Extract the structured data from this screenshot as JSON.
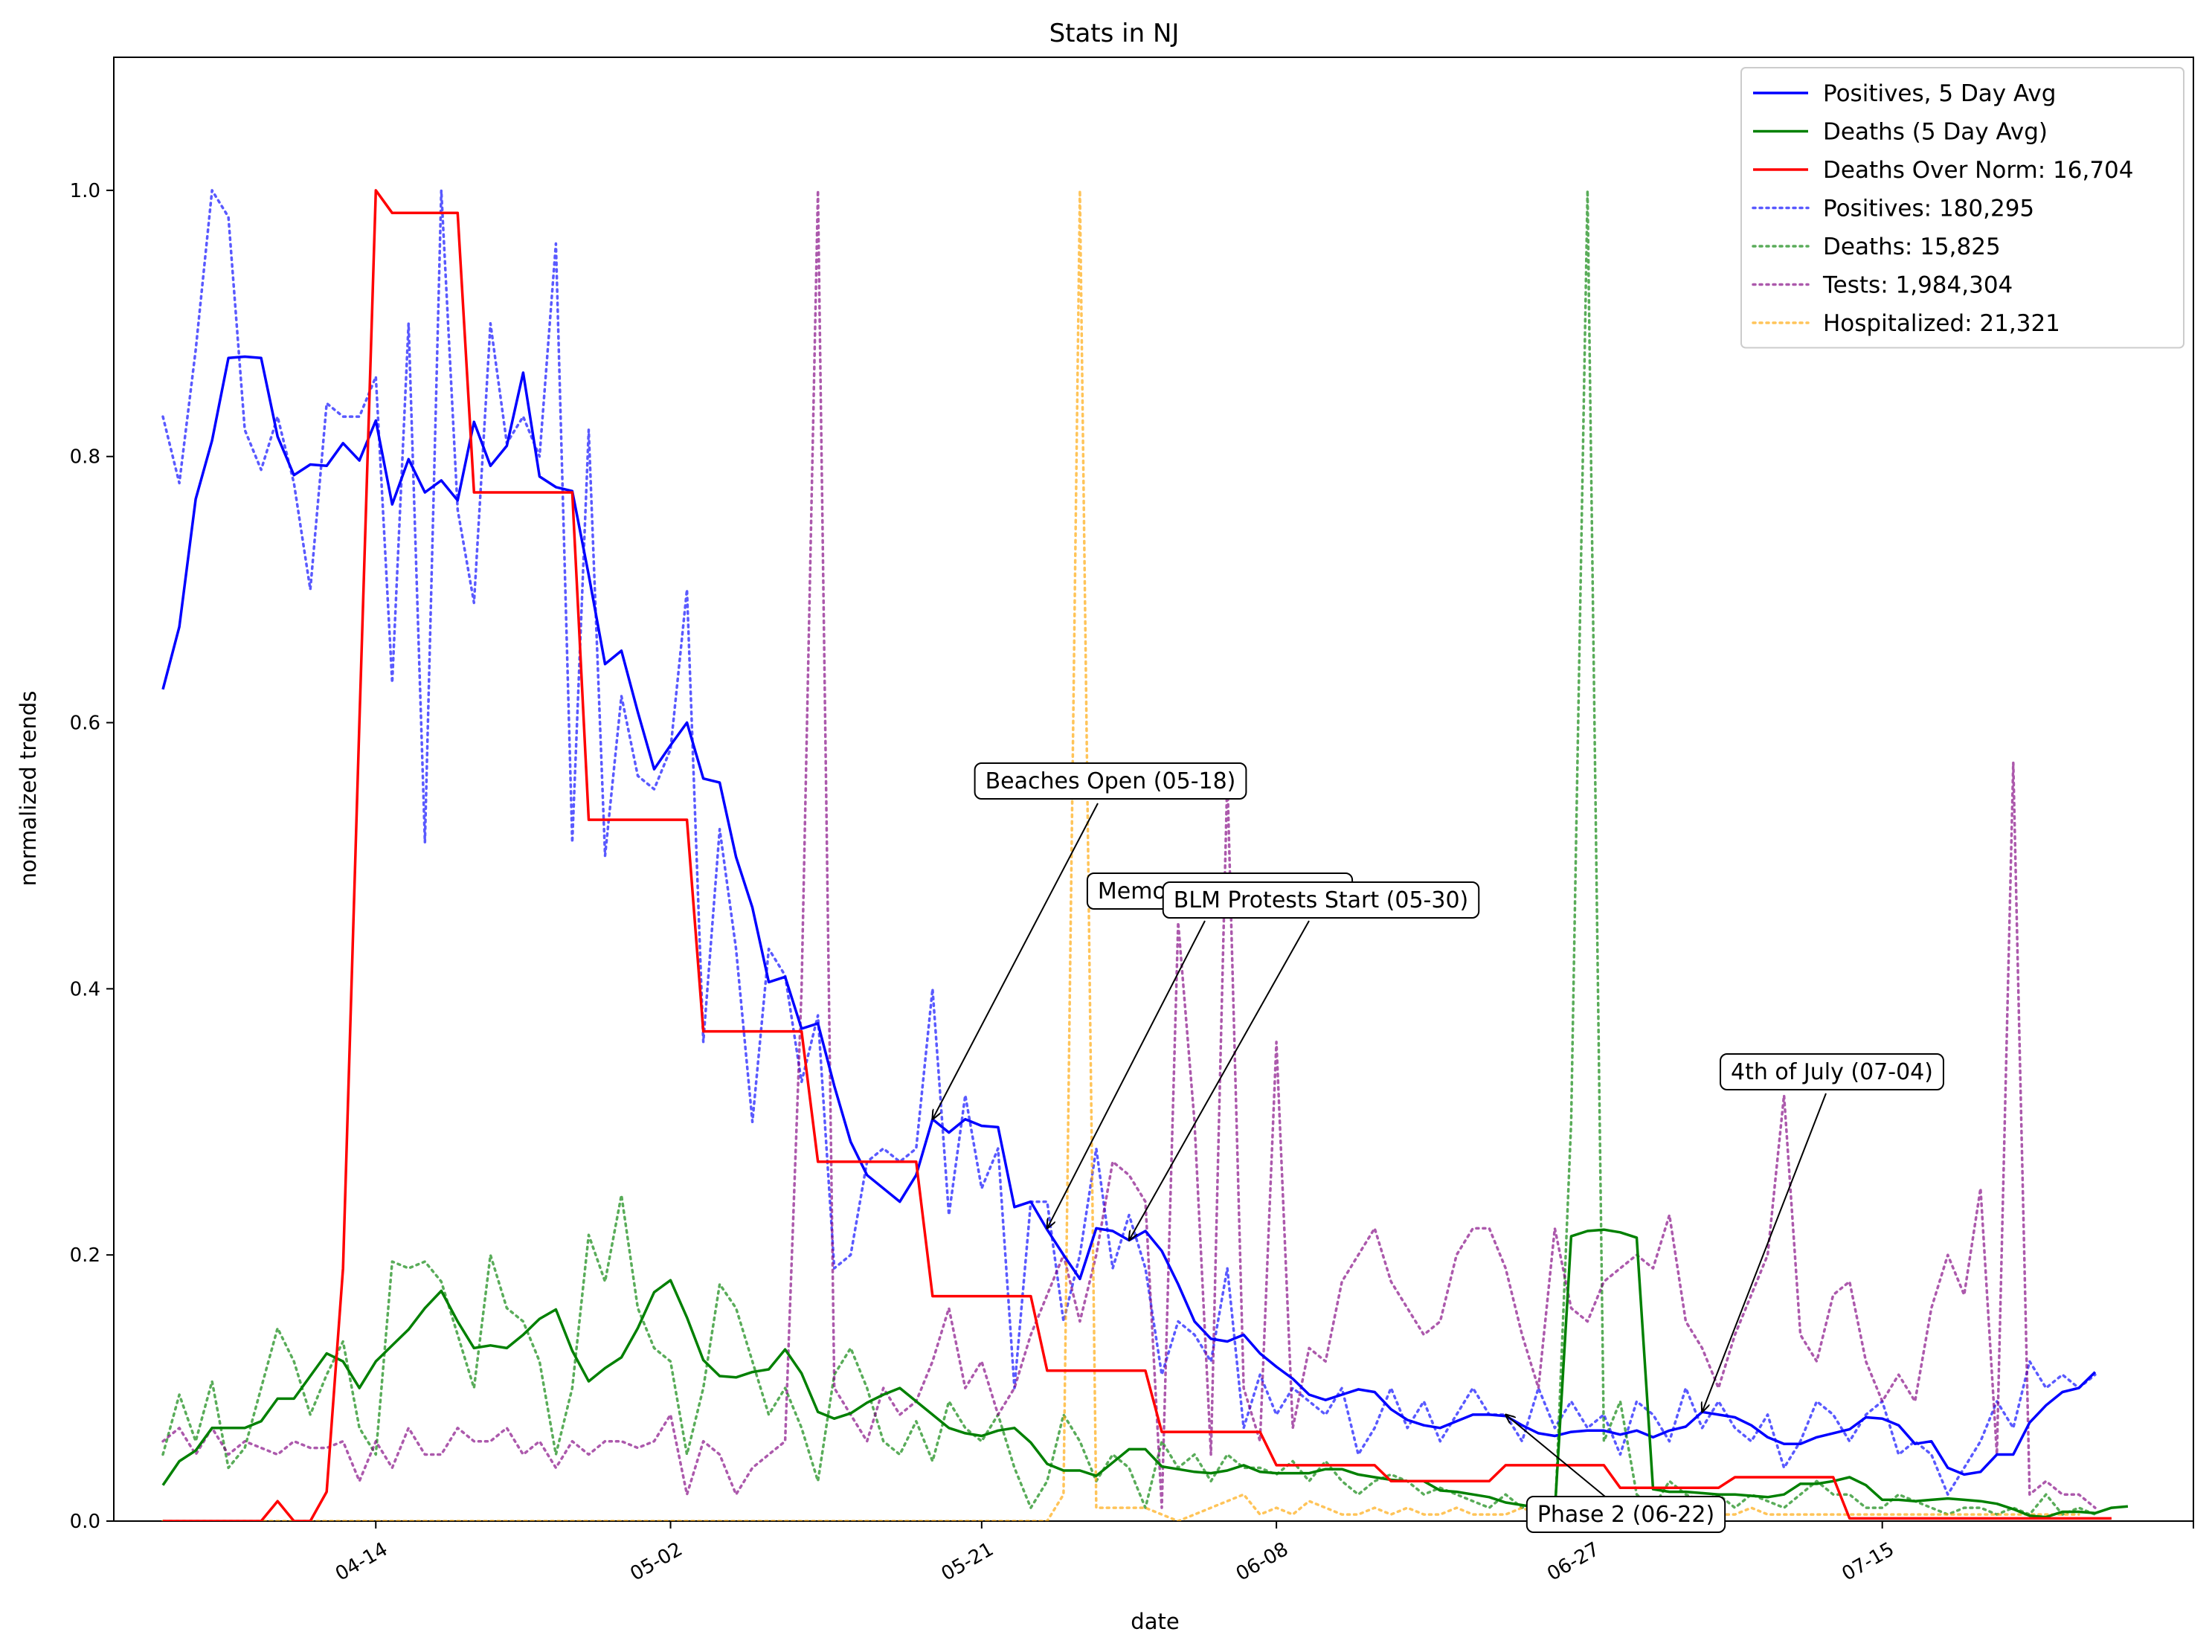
{
  "chart_data": {
    "type": "line",
    "title": "Stats in NJ",
    "xlabel": "date",
    "ylabel": "normalized trends",
    "ylim": [
      0,
      1.1
    ],
    "xlim": [
      "2020-03-29",
      "2020-08-03"
    ],
    "grid": false,
    "legend_position": "top-right",
    "x_ticks": [
      "04-14",
      "05-02",
      "05-21",
      "06-08",
      "06-27",
      "07-15"
    ],
    "x_tick_dates": [
      "2020-04-14",
      "2020-05-02",
      "2020-05-21",
      "2020-06-08",
      "2020-06-27",
      "2020-07-15"
    ],
    "y_ticks": [
      "0.0",
      "0.2",
      "0.4",
      "0.6",
      "0.8",
      "1.0"
    ],
    "start_date": "2020-04-01",
    "series": [
      {
        "name": "Positives, 5 Day Avg",
        "color": "#0000ff",
        "style": "solid",
        "values": [
          0.625,
          0.672,
          0.768,
          0.812,
          0.874,
          0.875,
          0.874,
          0.815,
          0.786,
          0.794,
          0.793,
          0.81,
          0.797,
          0.827,
          0.764,
          0.798,
          0.773,
          0.782,
          0.767,
          0.826,
          0.793,
          0.808,
          0.863,
          0.785,
          0.777,
          0.774,
          0.711,
          0.644,
          0.654,
          0.608,
          0.565,
          0.583,
          0.6,
          0.558,
          0.555,
          0.499,
          0.461,
          0.405,
          0.409,
          0.37,
          0.374,
          0.327,
          0.285,
          0.26,
          0.25,
          0.24,
          0.26,
          0.302,
          0.292,
          0.302,
          0.297,
          0.296,
          0.236,
          0.24,
          0.219,
          0.2,
          0.182,
          0.22,
          0.218,
          0.211,
          0.218,
          0.203,
          0.178,
          0.15,
          0.137,
          0.135,
          0.14,
          0.126,
          0.116,
          0.107,
          0.095,
          0.091,
          0.095,
          0.099,
          0.097,
          0.084,
          0.076,
          0.072,
          0.07,
          0.075,
          0.08,
          0.08,
          0.079,
          0.072,
          0.066,
          0.064,
          0.067,
          0.068,
          0.068,
          0.065,
          0.068,
          0.063,
          0.068,
          0.071,
          0.082,
          0.08,
          0.078,
          0.072,
          0.063,
          0.058,
          0.058,
          0.063,
          0.066,
          0.069,
          0.078,
          0.077,
          0.072,
          0.058,
          0.06,
          0.04,
          0.035,
          0.037,
          0.05,
          0.05,
          0.074,
          0.087,
          0.097,
          0.1,
          0.112
        ]
      },
      {
        "name": "Deaths (5 Day Avg)",
        "color": "#008000",
        "style": "solid",
        "values": [
          0.027,
          0.045,
          0.053,
          0.07,
          0.07,
          0.07,
          0.075,
          0.092,
          0.092,
          0.109,
          0.126,
          0.12,
          0.1,
          0.12,
          0.132,
          0.144,
          0.16,
          0.173,
          0.15,
          0.13,
          0.132,
          0.13,
          0.14,
          0.152,
          0.159,
          0.128,
          0.105,
          0.115,
          0.123,
          0.145,
          0.172,
          0.181,
          0.153,
          0.121,
          0.109,
          0.108,
          0.112,
          0.114,
          0.129,
          0.111,
          0.082,
          0.077,
          0.081,
          0.089,
          0.095,
          0.1,
          0.09,
          0.08,
          0.07,
          0.066,
          0.064,
          0.068,
          0.07,
          0.059,
          0.043,
          0.038,
          0.038,
          0.034,
          0.044,
          0.054,
          0.054,
          0.041,
          0.039,
          0.037,
          0.036,
          0.038,
          0.042,
          0.037,
          0.036,
          0.036,
          0.036,
          0.039,
          0.039,
          0.035,
          0.033,
          0.031,
          0.03,
          0.03,
          0.023,
          0.022,
          0.02,
          0.018,
          0.014,
          0.012,
          0.01,
          0.007,
          0.214,
          0.218,
          0.219,
          0.217,
          0.213,
          0.024,
          0.022,
          0.022,
          0.021,
          0.02,
          0.02,
          0.019,
          0.018,
          0.02,
          0.028,
          0.028,
          0.03,
          0.033,
          0.027,
          0.016,
          0.016,
          0.015,
          0.016,
          0.017,
          0.016,
          0.015,
          0.013,
          0.009,
          0.004,
          0.003,
          0.007,
          0.007,
          0.006,
          0.01,
          0.011
        ]
      },
      {
        "name": "Deaths Over Norm: 16,704",
        "color": "#ff0000",
        "style": "solid",
        "values": [
          0,
          0,
          0,
          0,
          0,
          0,
          0,
          0.015,
          0,
          0,
          0.022,
          0.19,
          0.6,
          1.0,
          0.983,
          0.983,
          0.983,
          0.983,
          0.983,
          0.773,
          0.773,
          0.773,
          0.773,
          0.773,
          0.773,
          0.773,
          0.527,
          0.527,
          0.527,
          0.527,
          0.527,
          0.527,
          0.527,
          0.368,
          0.368,
          0.368,
          0.368,
          0.368,
          0.368,
          0.368,
          0.27,
          0.27,
          0.27,
          0.27,
          0.27,
          0.27,
          0.27,
          0.169,
          0.169,
          0.169,
          0.169,
          0.169,
          0.169,
          0.169,
          0.113,
          0.113,
          0.113,
          0.113,
          0.113,
          0.113,
          0.113,
          0.067,
          0.067,
          0.067,
          0.067,
          0.067,
          0.067,
          0.067,
          0.042,
          0.042,
          0.042,
          0.042,
          0.042,
          0.042,
          0.042,
          0.03,
          0.03,
          0.03,
          0.03,
          0.03,
          0.03,
          0.03,
          0.042,
          0.042,
          0.042,
          0.042,
          0.042,
          0.042,
          0.042,
          0.025,
          0.025,
          0.025,
          0.025,
          0.025,
          0.025,
          0.025,
          0.033,
          0.033,
          0.033,
          0.033,
          0.033,
          0.033,
          0.033,
          0.002,
          0.002,
          0.002,
          0.002,
          0.002,
          0.002,
          0.002,
          0.002,
          0.002,
          0.002,
          0.002,
          0.002,
          0.002,
          0.002,
          0.002,
          0.002,
          0.002
        ]
      },
      {
        "name": "Positives: 180,295",
        "color": "#0000ff",
        "style": "dotted",
        "values": [
          0.83,
          0.78,
          0.88,
          1.0,
          0.98,
          0.82,
          0.79,
          0.83,
          0.78,
          0.7,
          0.84,
          0.83,
          0.83,
          0.86,
          0.63,
          0.9,
          0.51,
          1.0,
          0.76,
          0.69,
          0.9,
          0.81,
          0.83,
          0.8,
          0.96,
          0.51,
          0.82,
          0.5,
          0.62,
          0.56,
          0.55,
          0.58,
          0.7,
          0.36,
          0.52,
          0.43,
          0.3,
          0.43,
          0.41,
          0.33,
          0.38,
          0.19,
          0.2,
          0.27,
          0.28,
          0.27,
          0.28,
          0.4,
          0.23,
          0.32,
          0.25,
          0.28,
          0.1,
          0.24,
          0.24,
          0.15,
          0.2,
          0.28,
          0.19,
          0.23,
          0.19,
          0.11,
          0.15,
          0.14,
          0.12,
          0.19,
          0.07,
          0.11,
          0.08,
          0.1,
          0.09,
          0.08,
          0.1,
          0.05,
          0.07,
          0.1,
          0.07,
          0.09,
          0.06,
          0.08,
          0.1,
          0.08,
          0.08,
          0.06,
          0.1,
          0.07,
          0.09,
          0.07,
          0.08,
          0.05,
          0.09,
          0.08,
          0.06,
          0.1,
          0.07,
          0.09,
          0.07,
          0.06,
          0.08,
          0.04,
          0.06,
          0.09,
          0.08,
          0.06,
          0.08,
          0.09,
          0.05,
          0.06,
          0.05,
          0.02,
          0.04,
          0.06,
          0.09,
          0.07,
          0.12,
          0.1,
          0.11,
          0.1,
          0.11
        ]
      },
      {
        "name": "Deaths: 15,825",
        "color": "#008000",
        "style": "dotted",
        "values": [
          0.05,
          0.095,
          0.06,
          0.105,
          0.04,
          0.055,
          0.1,
          0.145,
          0.12,
          0.08,
          0.11,
          0.135,
          0.07,
          0.05,
          0.195,
          0.19,
          0.195,
          0.18,
          0.14,
          0.1,
          0.2,
          0.16,
          0.15,
          0.12,
          0.05,
          0.1,
          0.215,
          0.18,
          0.245,
          0.16,
          0.13,
          0.12,
          0.05,
          0.1,
          0.178,
          0.16,
          0.12,
          0.08,
          0.1,
          0.07,
          0.03,
          0.11,
          0.13,
          0.1,
          0.06,
          0.05,
          0.075,
          0.045,
          0.09,
          0.07,
          0.06,
          0.08,
          0.04,
          0.01,
          0.03,
          0.08,
          0.06,
          0.03,
          0.05,
          0.04,
          0.01,
          0.06,
          0.04,
          0.05,
          0.03,
          0.05,
          0.04,
          0.04,
          0.035,
          0.045,
          0.03,
          0.045,
          0.03,
          0.02,
          0.03,
          0.035,
          0.03,
          0.02,
          0.025,
          0.02,
          0.015,
          0.01,
          0.02,
          0.01,
          0.015,
          0.0,
          0.3,
          1.0,
          0.06,
          0.09,
          0.02,
          0.01,
          0.03,
          0.02,
          0.015,
          0.02,
          0.01,
          0.02,
          0.015,
          0.01,
          0.02,
          0.03,
          0.02,
          0.02,
          0.01,
          0.01,
          0.02,
          0.015,
          0.01,
          0.005,
          0.01,
          0.01,
          0.005,
          0.01,
          0.005,
          0.02,
          0.005,
          0.01,
          0.005
        ]
      },
      {
        "name": "Tests: 1,984,304",
        "color": "#800080",
        "style": "dotted",
        "values": [
          0.06,
          0.07,
          0.05,
          0.07,
          0.05,
          0.06,
          0.055,
          0.05,
          0.06,
          0.055,
          0.055,
          0.06,
          0.03,
          0.06,
          0.04,
          0.07,
          0.05,
          0.05,
          0.07,
          0.06,
          0.06,
          0.07,
          0.05,
          0.06,
          0.04,
          0.06,
          0.05,
          0.06,
          0.06,
          0.055,
          0.06,
          0.08,
          0.02,
          0.06,
          0.05,
          0.02,
          0.04,
          0.05,
          0.06,
          0.4,
          1.0,
          0.1,
          0.08,
          0.06,
          0.1,
          0.08,
          0.09,
          0.12,
          0.16,
          0.1,
          0.12,
          0.08,
          0.1,
          0.14,
          0.17,
          0.2,
          0.15,
          0.2,
          0.27,
          0.26,
          0.24,
          0.01,
          0.45,
          0.3,
          0.05,
          0.56,
          0.1,
          0.06,
          0.36,
          0.07,
          0.13,
          0.12,
          0.18,
          0.2,
          0.22,
          0.18,
          0.16,
          0.14,
          0.15,
          0.2,
          0.22,
          0.22,
          0.19,
          0.14,
          0.1,
          0.22,
          0.16,
          0.15,
          0.18,
          0.19,
          0.2,
          0.19,
          0.23,
          0.15,
          0.13,
          0.1,
          0.14,
          0.17,
          0.2,
          0.32,
          0.14,
          0.12,
          0.17,
          0.18,
          0.12,
          0.09,
          0.11,
          0.09,
          0.16,
          0.2,
          0.17,
          0.25,
          0.05,
          0.57,
          0.02,
          0.03,
          0.02,
          0.02,
          0.01
        ]
      },
      {
        "name": "Hospitalized: 21,321",
        "color": "#ffa500",
        "style": "dotted",
        "values": [
          0,
          0,
          0,
          0,
          0,
          0,
          0,
          0,
          0,
          0,
          0,
          0,
          0,
          0,
          0,
          0,
          0,
          0,
          0,
          0,
          0,
          0,
          0,
          0,
          0,
          0,
          0,
          0,
          0,
          0,
          0,
          0,
          0,
          0,
          0,
          0,
          0,
          0,
          0,
          0,
          0,
          0,
          0,
          0,
          0,
          0,
          0,
          0,
          0,
          0,
          0,
          0,
          0,
          0,
          0,
          0.02,
          1.0,
          0.01,
          0.01,
          0.01,
          0.01,
          0.005,
          0.0,
          0.005,
          0.01,
          0.015,
          0.02,
          0.005,
          0.01,
          0.005,
          0.015,
          0.01,
          0.005,
          0.005,
          0.01,
          0.005,
          0.01,
          0.005,
          0.005,
          0.01,
          0.005,
          0.005,
          0.005,
          0.01,
          0.005,
          0.005,
          0.005,
          0.01,
          0.005,
          0.005,
          0.01,
          0.005,
          0.005,
          0.005,
          0.005,
          0.005,
          0.005,
          0.01,
          0.005,
          0.005,
          0.005,
          0.005,
          0.005,
          0.005,
          0.005,
          0.005,
          0.005,
          0.005,
          0.005,
          0.005,
          0.005,
          0.005,
          0.005,
          0.005,
          0.005,
          0.005,
          0.005,
          0.005
        ]
      }
    ],
    "annotations": [
      {
        "text": "Beaches Open (05-18)",
        "date": "2020-05-18",
        "y": 0.302
      },
      {
        "text": "Memorial Day (05-25)",
        "date": "2020-05-25",
        "y": 0.22
      },
      {
        "text": "BLM Protests Start (05-30)",
        "date": "2020-05-30",
        "y": 0.211
      },
      {
        "text": "Phase 2 (06-22)",
        "date": "2020-06-22",
        "y": 0.08
      },
      {
        "text": "4th of July (07-04)",
        "date": "2020-07-04",
        "y": 0.082
      }
    ]
  }
}
